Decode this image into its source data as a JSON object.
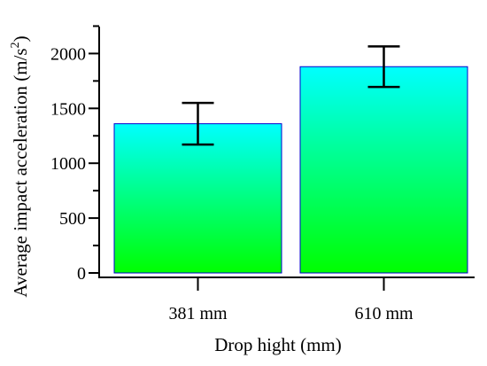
{
  "chart_data": {
    "type": "bar",
    "title": "",
    "xlabel": "Drop hight (mm)",
    "ylabel_main": "Average impact acceleration (m/s",
    "ylabel_superscript": "2",
    "ylabel_close": ")",
    "categories": [
      "381 mm",
      "610 mm"
    ],
    "values": [
      1360,
      1880
    ],
    "error": [
      190,
      185
    ],
    "ylim": [
      0,
      2250
    ],
    "yticks": [
      0,
      500,
      1000,
      1500,
      2000
    ],
    "grid": false,
    "legend": "none",
    "bar_gradient": {
      "top": "#00ffff",
      "bottom": "#00ff00"
    },
    "bar_edge_color": "#0000cc",
    "error_color": "#000000"
  }
}
